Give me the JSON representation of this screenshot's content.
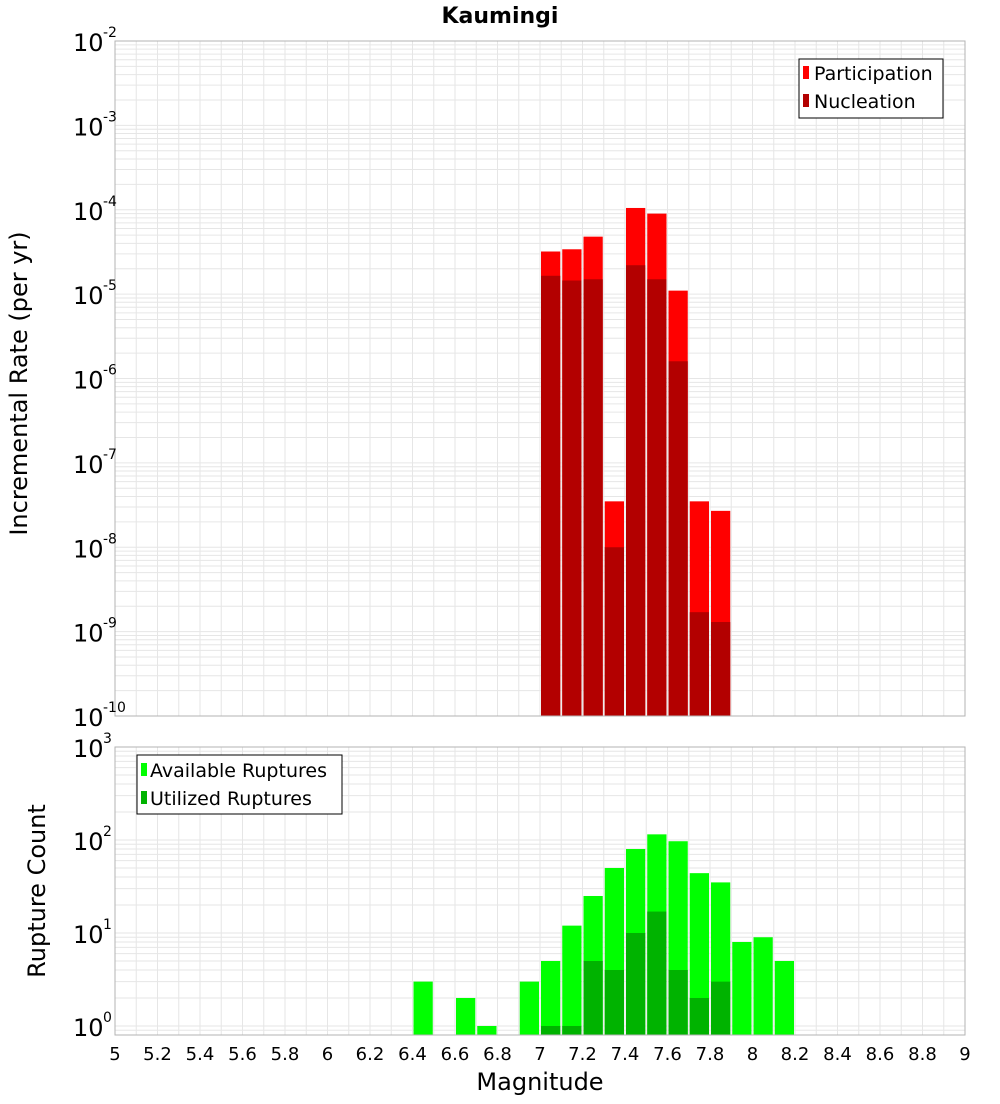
{
  "colors": {
    "participation": "#ff0000",
    "nucleation": "#b30000",
    "available": "#00ff00",
    "utilized": "#00b300",
    "grid": "#e6e6e6",
    "frame": "#b3b3b3"
  },
  "chart_data": [
    {
      "type": "bar",
      "title": "Kaumingi",
      "xlabel": "Magnitude",
      "ylabel": "Incremental Rate (per yr)",
      "xlim": [
        5,
        9
      ],
      "ylim": [
        1e-10,
        0.01
      ],
      "yscale": "log",
      "ytick_exponents": [
        "-10",
        "-9",
        "-8",
        "-7",
        "-6",
        "-5",
        "-4",
        "-3",
        "-2"
      ],
      "ytick_base": "10",
      "legend_position": "top-right",
      "bin_width": 0.1,
      "categories": [
        7.05,
        7.15,
        7.25,
        7.35,
        7.45,
        7.55,
        7.65,
        7.75,
        7.85
      ],
      "series": [
        {
          "name": "Participation",
          "values": [
            3.2e-05,
            3.4e-05,
            4.8e-05,
            3.5e-08,
            0.000105,
            9e-05,
            1.1e-05,
            3.5e-08,
            2.7e-08
          ]
        },
        {
          "name": "Nucleation",
          "values": [
            1.65e-05,
            1.45e-05,
            1.5e-05,
            1e-08,
            2.2e-05,
            1.5e-05,
            1.6e-06,
            1.7e-09,
            1.3e-09
          ]
        }
      ]
    },
    {
      "type": "bar",
      "xlabel": "Magnitude",
      "ylabel": "Rupture Count",
      "xlim": [
        5,
        9
      ],
      "ylim": [
        0.8,
        1000
      ],
      "yscale": "log",
      "ytick_exponents": [
        "0",
        "1",
        "2",
        "3"
      ],
      "ytick_base": "10",
      "xticks": [
        "5",
        "5.2",
        "5.4",
        "5.6",
        "5.8",
        "6",
        "6.2",
        "6.4",
        "6.6",
        "6.8",
        "7",
        "7.2",
        "7.4",
        "7.6",
        "7.8",
        "8",
        "8.2",
        "8.4",
        "8.6",
        "8.8",
        "9"
      ],
      "legend_position": "top-left",
      "bin_width": 0.1,
      "categories": [
        6.45,
        6.55,
        6.65,
        6.75,
        6.85,
        6.95,
        7.05,
        7.15,
        7.25,
        7.35,
        7.45,
        7.55,
        7.65,
        7.75,
        7.85,
        7.95,
        8.05,
        8.15
      ],
      "series": [
        {
          "name": "Available Ruptures",
          "values": [
            3,
            0,
            2,
            1,
            0,
            3,
            5,
            12,
            25,
            50,
            80,
            115,
            97,
            44,
            35,
            8,
            9,
            5
          ]
        },
        {
          "name": "Utilized Ruptures",
          "values": [
            0,
            0,
            0,
            0,
            0,
            0,
            1,
            1,
            5,
            4,
            10,
            17,
            4,
            2,
            3,
            0,
            0,
            0
          ]
        }
      ]
    }
  ]
}
